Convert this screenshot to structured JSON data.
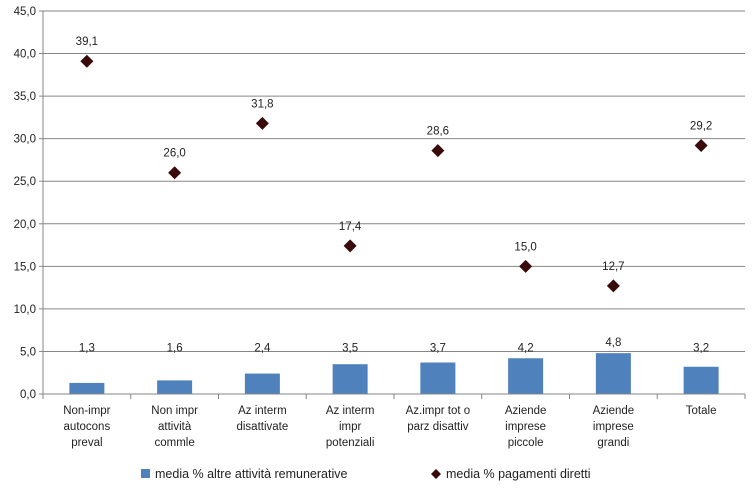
{
  "chart_data": {
    "type": "bar",
    "categories": [
      [
        "Non-impr",
        "autocons",
        "preval"
      ],
      [
        "Non impr",
        "attività",
        "commle"
      ],
      [
        "Az interm",
        "disattivate"
      ],
      [
        "Az interm",
        "impr",
        "potenziali"
      ],
      [
        "Az.impr tot o",
        "parz disattiv"
      ],
      [
        "Aziende",
        "imprese",
        "piccole"
      ],
      [
        "Aziende",
        "imprese",
        "grandi"
      ],
      [
        "Totale"
      ]
    ],
    "series": [
      {
        "name": "media % altre attività remunerative",
        "type": "bar",
        "color": "#4f81bd",
        "values": [
          1.3,
          1.6,
          2.4,
          3.5,
          3.7,
          4.2,
          4.8,
          3.2
        ],
        "labels": [
          "1,3",
          "1,6",
          "2,4",
          "3,5",
          "3,7",
          "4,2",
          "4,8",
          "3,2"
        ]
      },
      {
        "name": "media % pagamenti diretti",
        "type": "scatter",
        "marker": "diamond",
        "color": "#3a0a0a",
        "values": [
          39.1,
          26.0,
          31.8,
          17.4,
          28.6,
          15.0,
          12.7,
          29.2
        ],
        "labels": [
          "39,1",
          "26,0",
          "31,8",
          "17,4",
          "28,6",
          "15,0",
          "12,7",
          "29,2"
        ]
      }
    ],
    "ylim": [
      0,
      45
    ],
    "yticks": [
      "0,0",
      "5,0",
      "10,0",
      "15,0",
      "20,0",
      "25,0",
      "30,0",
      "35,0",
      "40,0",
      "45,0"
    ],
    "gridlines": true,
    "legend_position": "bottom"
  }
}
